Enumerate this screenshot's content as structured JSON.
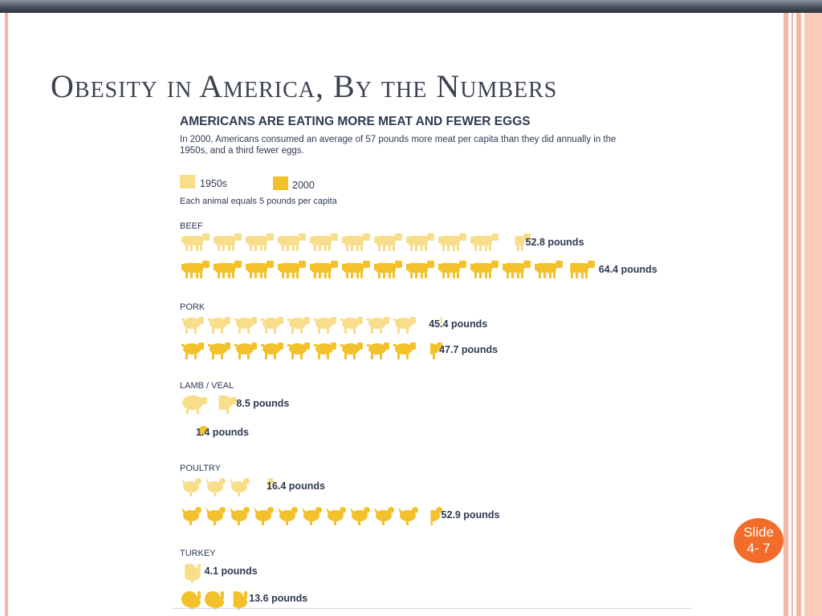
{
  "slide": {
    "title": "Obesity in America, By the Numbers",
    "badge_line1": "Slide",
    "badge_line2": "4- 7"
  },
  "colors": {
    "color_1950s": "#f8dd8a",
    "color_2000": "#f2c12b",
    "title_text": "#3b4250",
    "badge": "#f26c2a"
  },
  "chart_data": {
    "type": "bar",
    "title": "AMERICANS ARE EATING MORE MEAT AND FEWER EGGS",
    "subtitle_line1": "In 2000, Americans consumed an average of 57 pounds more meat per capita than they did annually in the",
    "subtitle_line2": "1950s, and a third fewer eggs.",
    "legend": [
      "1950s",
      "2000"
    ],
    "unit_note": "Each animal equals 5 pounds per capita",
    "series": [
      {
        "name": "1950s",
        "values": [
          52.8,
          45.4,
          8.5,
          16.4,
          4.1
        ]
      },
      {
        "name": "2000",
        "values": [
          64.4,
          47.7,
          1.4,
          52.9,
          13.6
        ]
      }
    ],
    "categories": [
      {
        "label": "BEEF",
        "icon": "cow-icon",
        "v1950": 52.8,
        "l1950": "52.8 pounds",
        "v2000": 64.4,
        "l2000": "64.4 pounds"
      },
      {
        "label": "PORK",
        "icon": "pig-icon",
        "v1950": 45.4,
        "l1950": "45.4 pounds",
        "v2000": 47.7,
        "l2000": "47.7 pounds"
      },
      {
        "label": "LAMB / VEAL",
        "icon": "sheep-icon",
        "v1950": 8.5,
        "l1950": "8.5 pounds",
        "v2000": 1.4,
        "l2000": "1.4 pounds"
      },
      {
        "label": "POULTRY",
        "icon": "chicken-icon",
        "v1950": 16.4,
        "l1950": "16.4 pounds",
        "v2000": 52.9,
        "l2000": "52.9 pounds"
      },
      {
        "label": "TURKEY",
        "icon": "turkey-icon",
        "v1950": 4.1,
        "l1950": "4.1 pounds",
        "v2000": 13.6,
        "l2000": "13.6 pounds"
      }
    ],
    "pounds_per_icon": 5
  }
}
